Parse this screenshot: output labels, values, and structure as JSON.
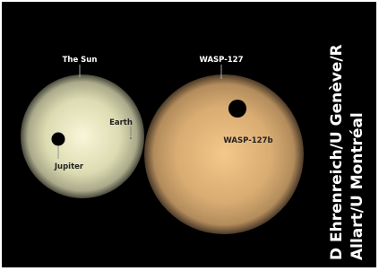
{
  "labels": {
    "sun": "The Sun",
    "wasp127": "WASP-127",
    "earth": "Earth",
    "jupiter": "Jupiter",
    "wasp127b": "WASP-127b"
  },
  "credit": {
    "line1": "D Ehrenreich/U Genève/R",
    "line2": "Allart/U Montréal"
  }
}
